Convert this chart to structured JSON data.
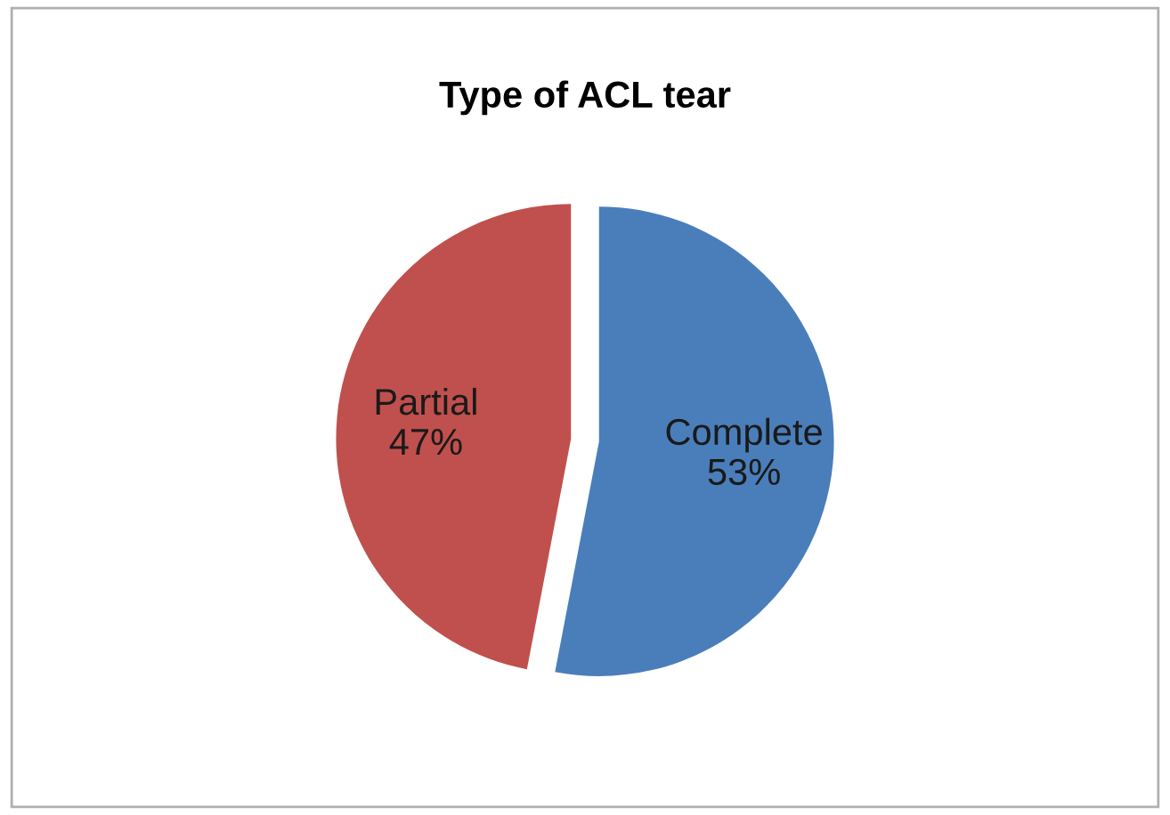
{
  "chart_data": {
    "type": "pie",
    "title": "Type of ACL tear",
    "categories": [
      "Complete",
      "Partial"
    ],
    "values": [
      53,
      47
    ],
    "colors": [
      "#4a7ebb",
      "#c0504d"
    ],
    "value_labels": [
      "53%",
      "47%"
    ]
  }
}
